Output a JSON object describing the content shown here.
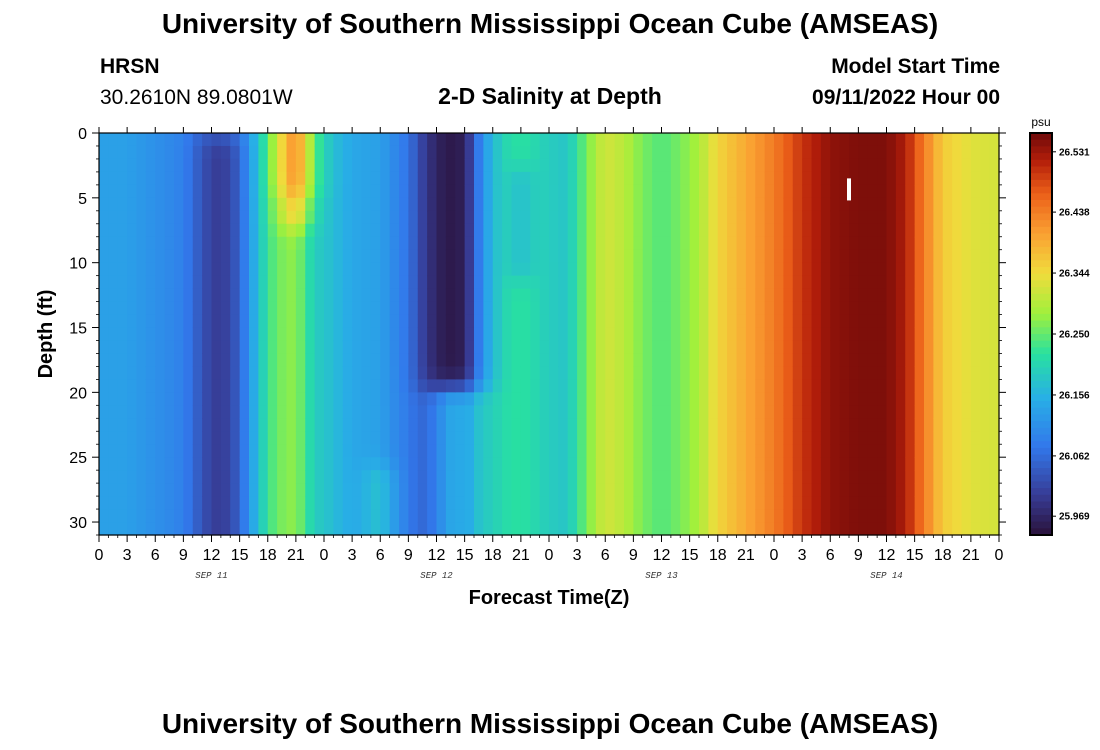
{
  "header": {
    "title": "University of Southern Mississippi Ocean Cube (AMSEAS)",
    "station_name": "HRSN",
    "station_coords": "30.2610N  89.0801W",
    "plot_title": "2-D Salinity at Depth",
    "model_start_label": "Model Start Time",
    "model_start_value": "09/11/2022 Hour 00"
  },
  "footer": {
    "title": "University of Southern Mississippi Ocean Cube (AMSEAS)"
  },
  "chart_data": {
    "type": "heatmap",
    "title": "2-D Salinity at Depth",
    "xlabel": "Forecast Time(Z)",
    "ylabel": "Depth (ft)",
    "x_tick_labels": [
      "0",
      "3",
      "6",
      "9",
      "12",
      "15",
      "18",
      "21",
      "0",
      "3",
      "6",
      "9",
      "12",
      "15",
      "18",
      "21",
      "0",
      "3",
      "6",
      "9",
      "12",
      "15",
      "18",
      "21",
      "0",
      "3",
      "6",
      "9",
      "12",
      "15",
      "18",
      "21",
      "0"
    ],
    "x_range_hours": [
      0,
      96
    ],
    "date_labels": [
      {
        "label": "SEP 11",
        "hour": 12
      },
      {
        "label": "SEP 12",
        "hour": 36
      },
      {
        "label": "SEP 13",
        "hour": 60
      },
      {
        "label": "SEP 14",
        "hour": 84
      }
    ],
    "y_ticks": [
      0,
      5,
      10,
      15,
      20,
      25,
      30
    ],
    "y_range_ft": [
      0,
      31
    ],
    "colorbar": {
      "unit": "psu",
      "min": 25.94,
      "max": 26.56,
      "tick_values": [
        25.969,
        26.062,
        26.156,
        26.25,
        26.344,
        26.438,
        26.531
      ],
      "tick_labels": [
        "25.969",
        "26.062",
        "26.156",
        "26.250",
        "26.344",
        "26.438",
        "26.531"
      ]
    },
    "surface_profile": [
      {
        "hour": 0,
        "value": 26.13
      },
      {
        "hour": 3,
        "value": 26.13
      },
      {
        "hour": 6,
        "value": 26.11
      },
      {
        "hour": 9,
        "value": 26.09
      },
      {
        "hour": 11,
        "value": 26.05
      },
      {
        "hour": 13,
        "value": 26.04
      },
      {
        "hour": 15,
        "value": 26.07
      },
      {
        "hour": 17,
        "value": 26.18
      },
      {
        "hour": 19,
        "value": 26.29
      },
      {
        "hour": 21,
        "value": 26.34
      },
      {
        "hour": 23,
        "value": 26.22
      },
      {
        "hour": 25,
        "value": 26.17
      },
      {
        "hour": 27,
        "value": 26.14
      },
      {
        "hour": 30,
        "value": 26.13
      },
      {
        "hour": 33,
        "value": 26.07
      },
      {
        "hour": 35,
        "value": 25.99
      },
      {
        "hour": 37,
        "value": 25.95
      },
      {
        "hour": 39,
        "value": 25.96
      },
      {
        "hour": 41,
        "value": 26.12
      },
      {
        "hour": 43,
        "value": 26.2
      },
      {
        "hour": 45,
        "value": 26.22
      },
      {
        "hour": 48,
        "value": 26.19
      },
      {
        "hour": 50,
        "value": 26.18
      },
      {
        "hour": 52,
        "value": 26.26
      },
      {
        "hour": 54,
        "value": 26.32
      },
      {
        "hour": 56,
        "value": 26.3
      },
      {
        "hour": 58,
        "value": 26.26
      },
      {
        "hour": 60,
        "value": 26.24
      },
      {
        "hour": 62,
        "value": 26.26
      },
      {
        "hour": 64,
        "value": 26.29
      },
      {
        "hour": 66,
        "value": 26.35
      },
      {
        "hour": 68,
        "value": 26.38
      },
      {
        "hour": 70,
        "value": 26.41
      },
      {
        "hour": 72,
        "value": 26.44
      },
      {
        "hour": 75,
        "value": 26.5
      },
      {
        "hour": 78,
        "value": 26.54
      },
      {
        "hour": 81,
        "value": 26.55
      },
      {
        "hour": 84,
        "value": 26.55
      },
      {
        "hour": 86,
        "value": 26.52
      },
      {
        "hour": 88,
        "value": 26.44
      },
      {
        "hour": 90,
        "value": 26.36
      },
      {
        "hour": 93,
        "value": 26.33
      },
      {
        "hour": 96,
        "value": 26.32
      }
    ],
    "depth_features": [
      {
        "hour": 13,
        "width_hours": 2.5,
        "depth_start": 2,
        "depth_end": 31,
        "delta": -0.04
      },
      {
        "hour": 21,
        "width_hours": 2.0,
        "depth_start": 0,
        "depth_end": 6,
        "delta": 0.08
      },
      {
        "hour": 21,
        "width_hours": 2.5,
        "depth_start": 6,
        "depth_end": 31,
        "delta": -0.06
      },
      {
        "hour": 38,
        "width_hours": 3.0,
        "depth_start": 21,
        "depth_end": 31,
        "delta": 0.19
      },
      {
        "hour": 45,
        "width_hours": 1.5,
        "depth_start": 4,
        "depth_end": 10,
        "delta": -0.04
      },
      {
        "hour": 30,
        "width_hours": 2.0,
        "depth_start": 27,
        "depth_end": 31,
        "delta": 0.04
      }
    ],
    "annotation": {
      "hour": 80,
      "depth_start": 3.5,
      "depth_end": 5.2
    }
  }
}
